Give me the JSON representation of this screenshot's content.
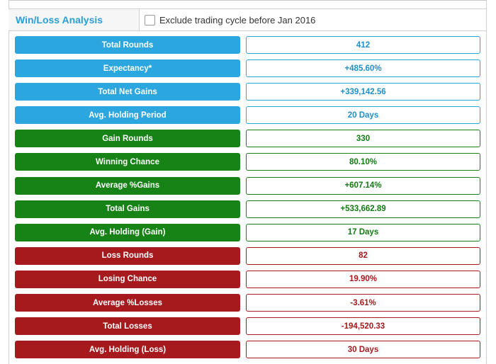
{
  "panel": {
    "title": "Win/Loss Analysis",
    "filter_label": "Exclude trading cycle before Jan 2016",
    "filter_checked": false
  },
  "colors": {
    "overall": "#2ba6de",
    "gain": "#178317",
    "loss": "#a6191d"
  },
  "stats": [
    {
      "label": "Total Rounds",
      "value": "412",
      "group": "blue"
    },
    {
      "label": "Expectancy*",
      "value": "+485.60%",
      "group": "blue"
    },
    {
      "label": "Total Net Gains",
      "value": "+339,142.56",
      "group": "blue"
    },
    {
      "label": "Avg. Holding Period",
      "value": "20 Days",
      "group": "blue"
    },
    {
      "label": "Gain Rounds",
      "value": "330",
      "group": "green"
    },
    {
      "label": "Winning Chance",
      "value": "80.10%",
      "group": "green"
    },
    {
      "label": "Average %Gains",
      "value": "+607.14%",
      "group": "green"
    },
    {
      "label": "Total Gains",
      "value": "+533,662.89",
      "group": "green"
    },
    {
      "label": "Avg. Holding (Gain)",
      "value": "17 Days",
      "group": "green"
    },
    {
      "label": "Loss Rounds",
      "value": "82",
      "group": "red"
    },
    {
      "label": "Losing Chance",
      "value": "19.90%",
      "group": "red"
    },
    {
      "label": "Average %Losses",
      "value": "-3.61%",
      "group": "red"
    },
    {
      "label": "Total Losses",
      "value": "-194,520.33",
      "group": "red"
    },
    {
      "label": "Avg. Holding (Loss)",
      "value": "30 Days",
      "group": "red"
    }
  ]
}
